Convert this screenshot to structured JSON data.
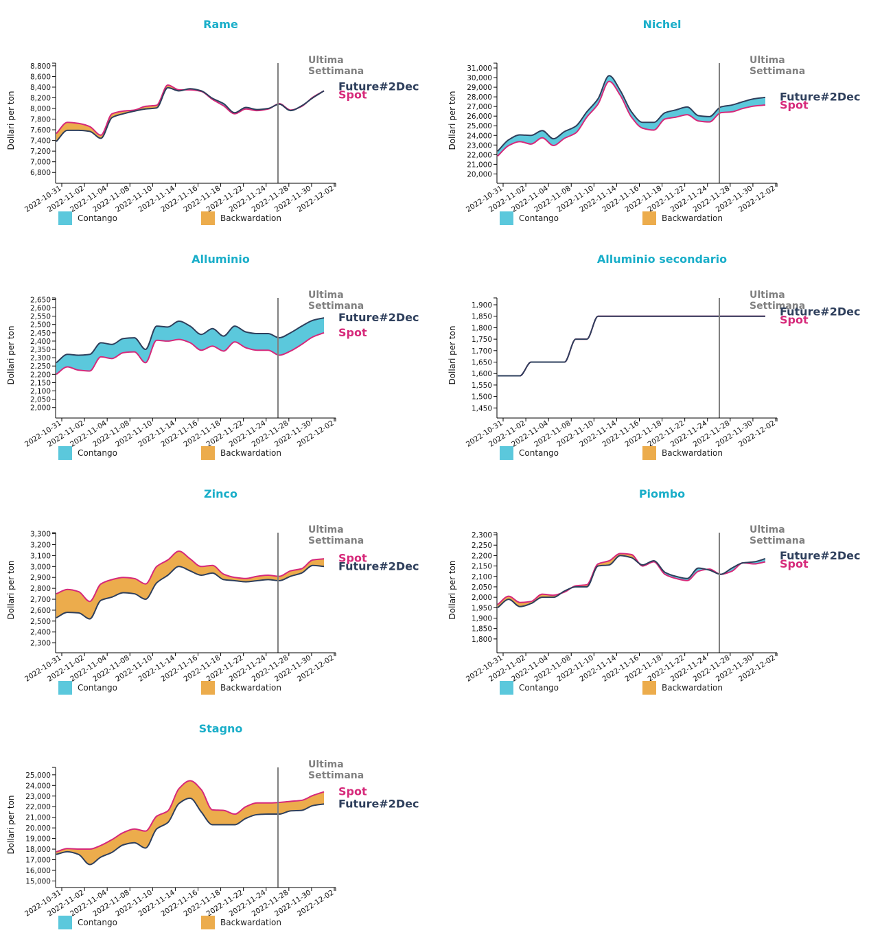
{
  "colors": {
    "title": "#1aaec9",
    "future": "#2e3f5c",
    "spot": "#d6297a",
    "contango": "#5bc8dc",
    "backwardation": "#ecac4c",
    "last_week_line": "#808080",
    "axis": "#000000"
  },
  "common": {
    "ylabel": "Dollari per ton",
    "last_week_line1": "Ultima",
    "last_week_line2": "Settimana",
    "future_label": "Future#2Dec",
    "spot_label": "Spot",
    "legend": [
      {
        "label": "Contango",
        "color": "#5bc8dc"
      },
      {
        "label": "Backwardation",
        "color": "#ecac4c"
      }
    ],
    "x_ticks": [
      "2022-10-31",
      "2022-11-02",
      "2022-11-04",
      "2022-11-08",
      "2022-11-10",
      "2022-11-14",
      "2022-11-16",
      "2022-11-18",
      "2022-11-22",
      "2022-11-24",
      "2022-11-28",
      "2022-11-30",
      "2022-12-02"
    ],
    "dates": [
      "2022-10-31",
      "2022-11-01",
      "2022-11-02",
      "2022-11-03",
      "2022-11-04",
      "2022-11-07",
      "2022-11-08",
      "2022-11-09",
      "2022-11-10",
      "2022-11-11",
      "2022-11-14",
      "2022-11-15",
      "2022-11-16",
      "2022-11-17",
      "2022-11-18",
      "2022-11-21",
      "2022-11-22",
      "2022-11-23",
      "2022-11-24",
      "2022-11-25",
      "2022-11-28",
      "2022-11-29",
      "2022-11-30",
      "2022-12-01",
      "2022-12-02"
    ],
    "last_week_start_index": 20
  },
  "chart_data": [
    {
      "type": "area",
      "title": "Rame",
      "xlabel": "",
      "ylabel": "Dollari per ton",
      "ylim": [
        6700,
        8850
      ],
      "y_ticks": [
        "6,800",
        "7,000",
        "7,200",
        "7,400",
        "7,600",
        "7,800",
        "8,000",
        "8,200",
        "8,400",
        "8,600",
        "8,800"
      ],
      "series": [
        {
          "name": "Future#2Dec",
          "values": [
            7380,
            7590,
            7590,
            7570,
            7440,
            7830,
            7900,
            7950,
            7990,
            8010,
            8390,
            8330,
            8370,
            8330,
            8190,
            8090,
            7920,
            8020,
            7980,
            8000,
            8080,
            7960,
            8050,
            8200,
            8330
          ]
        },
        {
          "name": "Spot",
          "values": [
            7530,
            7740,
            7720,
            7660,
            7500,
            7900,
            7950,
            7970,
            8040,
            8060,
            8440,
            8350,
            8350,
            8320,
            8170,
            8050,
            7900,
            7990,
            7960,
            7990,
            8090,
            7970,
            8040,
            8210,
            8330
          ]
        }
      ]
    },
    {
      "type": "area",
      "title": "Nichel",
      "xlabel": "",
      "ylabel": "Dollari per ton",
      "ylim": [
        19600,
        31500
      ],
      "y_ticks": [
        "20,000",
        "21,000",
        "22,000",
        "23,000",
        "24,000",
        "25,000",
        "26,000",
        "27,000",
        "28,000",
        "29,000",
        "30,000",
        "31,000"
      ],
      "series": [
        {
          "name": "Future#2Dec",
          "values": [
            22350,
            23550,
            24050,
            24000,
            24500,
            23650,
            24400,
            24950,
            26450,
            27800,
            30200,
            28650,
            26450,
            25350,
            25350,
            26350,
            26650,
            26950,
            26050,
            25950,
            26950,
            27150,
            27500,
            27800,
            27950
          ]
        },
        {
          "name": "Spot",
          "values": [
            21850,
            22950,
            23350,
            23100,
            23750,
            22950,
            23700,
            24250,
            25900,
            27250,
            29600,
            28150,
            25900,
            24750,
            24550,
            25700,
            25900,
            26150,
            25500,
            25400,
            26350,
            26450,
            26800,
            27050,
            27150
          ]
        }
      ]
    },
    {
      "type": "area",
      "title": "Alluminio",
      "xlabel": "",
      "ylabel": "Dollari per ton",
      "ylim": [
        1970,
        2660
      ],
      "y_ticks": [
        "2,000",
        "2,050",
        "2,100",
        "2,150",
        "2,200",
        "2,250",
        "2,300",
        "2,350",
        "2,400",
        "2,450",
        "2,500",
        "2,550",
        "2,600",
        "2,650"
      ],
      "series": [
        {
          "name": "Future#2Dec",
          "values": [
            2270,
            2320,
            2315,
            2320,
            2390,
            2380,
            2415,
            2420,
            2350,
            2490,
            2485,
            2520,
            2490,
            2440,
            2475,
            2430,
            2490,
            2455,
            2445,
            2445,
            2420,
            2450,
            2490,
            2525,
            2540
          ]
        },
        {
          "name": "Spot",
          "values": [
            2200,
            2245,
            2225,
            2220,
            2305,
            2295,
            2330,
            2335,
            2270,
            2405,
            2400,
            2410,
            2390,
            2345,
            2370,
            2340,
            2395,
            2360,
            2345,
            2345,
            2315,
            2340,
            2380,
            2425,
            2450
          ]
        }
      ]
    },
    {
      "type": "area",
      "title": "Alluminio secondario",
      "xlabel": "",
      "ylabel": "Dollari per ton",
      "ylim": [
        1430,
        1930
      ],
      "y_ticks": [
        "1,450",
        "1,500",
        "1,550",
        "1,600",
        "1,650",
        "1,700",
        "1,750",
        "1,800",
        "1,850",
        "1,900"
      ],
      "series": [
        {
          "name": "Future#2Dec",
          "values": [
            1590,
            1590,
            1590,
            1650,
            1650,
            1650,
            1650,
            1750,
            1750,
            1850,
            1850,
            1850,
            1850,
            1850,
            1850,
            1850,
            1850,
            1850,
            1850,
            1850,
            1850,
            1850,
            1850,
            1850,
            1850
          ]
        },
        {
          "name": "Spot",
          "values": [
            1590,
            1590,
            1590,
            1650,
            1650,
            1650,
            1650,
            1750,
            1750,
            1850,
            1850,
            1850,
            1850,
            1850,
            1850,
            1850,
            1850,
            1850,
            1850,
            1850,
            1850,
            1850,
            1850,
            1850,
            1850
          ]
        }
      ]
    },
    {
      "type": "area",
      "title": "Zinco",
      "xlabel": "",
      "ylabel": "Dollari per ton",
      "ylim": [
        2260,
        3310
      ],
      "y_ticks": [
        "2,300",
        "2,400",
        "2,500",
        "2,600",
        "2,700",
        "2,800",
        "2,900",
        "3,000",
        "3,100",
        "3,200",
        "3,300"
      ],
      "series": [
        {
          "name": "Future#2Dec",
          "values": [
            2530,
            2580,
            2575,
            2520,
            2690,
            2720,
            2760,
            2750,
            2700,
            2850,
            2920,
            3000,
            2960,
            2920,
            2940,
            2880,
            2870,
            2860,
            2870,
            2880,
            2870,
            2910,
            2940,
            3010,
            3000
          ]
        },
        {
          "name": "Spot",
          "values": [
            2750,
            2790,
            2770,
            2680,
            2840,
            2880,
            2900,
            2890,
            2840,
            3000,
            3060,
            3140,
            3070,
            3000,
            3010,
            2930,
            2900,
            2890,
            2910,
            2920,
            2910,
            2960,
            2980,
            3060,
            3070
          ]
        }
      ]
    },
    {
      "type": "area",
      "title": "Piombo",
      "xlabel": "",
      "ylabel": "Dollari per ton",
      "ylim": [
        1760,
        2310
      ],
      "y_ticks": [
        "1,800",
        "1,850",
        "1,900",
        "1,950",
        "2,000",
        "2,050",
        "2,100",
        "2,150",
        "2,200",
        "2,250",
        "2,300"
      ],
      "series": [
        {
          "name": "Future#2Dec",
          "values": [
            1950,
            1990,
            1955,
            1970,
            2000,
            2000,
            2030,
            2050,
            2050,
            2150,
            2155,
            2200,
            2190,
            2155,
            2175,
            2120,
            2100,
            2090,
            2140,
            2130,
            2110,
            2140,
            2165,
            2170,
            2185
          ]
        },
        {
          "name": "Spot",
          "values": [
            1965,
            2005,
            1975,
            1980,
            2015,
            2010,
            2025,
            2055,
            2060,
            2160,
            2175,
            2210,
            2205,
            2150,
            2170,
            2110,
            2090,
            2080,
            2125,
            2135,
            2110,
            2125,
            2165,
            2160,
            2170
          ]
        }
      ]
    },
    {
      "type": "area",
      "title": "Stagno",
      "xlabel": "",
      "ylabel": "Dollari per ton",
      "ylim": [
        14900,
        25700
      ],
      "y_ticks": [
        "15,000",
        "16,000",
        "17,000",
        "18,000",
        "19,000",
        "20,000",
        "21,000",
        "22,000",
        "23,000",
        "24,000",
        "25,000"
      ],
      "series": [
        {
          "name": "Future#2Dec",
          "values": [
            17500,
            17750,
            17500,
            16550,
            17250,
            17700,
            18400,
            18600,
            18100,
            19900,
            20500,
            22300,
            22800,
            21500,
            20300,
            20300,
            20300,
            20900,
            21250,
            21300,
            21300,
            21600,
            21650,
            22100,
            22250
          ]
        },
        {
          "name": "Spot",
          "values": [
            17750,
            18050,
            18000,
            18000,
            18350,
            18900,
            19550,
            19900,
            19700,
            21100,
            21600,
            23700,
            24450,
            23600,
            21700,
            21650,
            21300,
            22000,
            22350,
            22350,
            22400,
            22500,
            22600,
            23050,
            23400
          ]
        }
      ]
    }
  ]
}
